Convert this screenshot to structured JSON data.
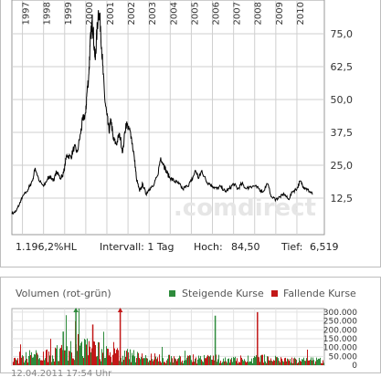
{
  "chart_data": [
    {
      "type": "line",
      "watermark": ".comdirect",
      "x_tick_labels": [
        "1997",
        "1998",
        "1999",
        "2000",
        "2001",
        "2002",
        "2003",
        "2004",
        "2005",
        "2006",
        "2007",
        "2008",
        "2009",
        "2010"
      ],
      "y_tick_labels": [
        "75,0",
        "62,5",
        "50,0",
        "37,5",
        "25,0",
        "12,5"
      ],
      "ylim": [
        0,
        84.5
      ],
      "y_axis_side": "right",
      "grid": true,
      "line_color": "#000000",
      "series": [
        {
          "x": [
            1996.5,
            1996.7,
            1996.9,
            1997.0,
            1997.2,
            1997.35,
            1997.5,
            1997.6,
            1997.8,
            1998.0,
            1998.2,
            1998.3,
            1998.5,
            1998.6,
            1998.8,
            1998.95,
            1999.1,
            1999.3,
            1999.45,
            1999.6,
            1999.75,
            1999.85,
            2000.0,
            2000.05,
            2000.15,
            2000.2,
            2000.3,
            2000.35,
            2000.45,
            2000.5,
            2000.6,
            2000.7,
            2000.8,
            2000.9,
            2001.0,
            2001.1,
            2001.2,
            2001.3,
            2001.45,
            2001.6,
            2001.75,
            2001.9,
            2002.05,
            2002.15,
            2002.3,
            2002.4,
            2002.55,
            2002.7,
            2002.85,
            2003.0,
            2003.2,
            2003.4,
            2003.55,
            2003.7,
            2003.85,
            2004.0,
            2004.2,
            2004.4,
            2004.6,
            2004.8,
            2005.0,
            2005.2,
            2005.35,
            2005.5,
            2005.7,
            2005.85,
            2006.0,
            2006.2,
            2006.4,
            2006.6,
            2006.8,
            2007.0,
            2007.2,
            2007.4,
            2007.6,
            2007.8,
            2008.0,
            2008.2,
            2008.4,
            2008.6,
            2008.8,
            2009.0,
            2009.2,
            2009.4,
            2009.6,
            2009.8,
            2010.0,
            2010.15,
            2010.3,
            2010.45,
            2010.6,
            2010.75
          ],
          "values": [
            6.5,
            7.5,
            11,
            13,
            15,
            17,
            20,
            24,
            19,
            17,
            20,
            21,
            19,
            23,
            20,
            22,
            29,
            28,
            32,
            30,
            37,
            42,
            45,
            52,
            60,
            70,
            80,
            76,
            65,
            72,
            84,
            78,
            63,
            50,
            44,
            38,
            42,
            35,
            33,
            37,
            30,
            41,
            39,
            36,
            28,
            20,
            15,
            18,
            14,
            16,
            17,
            21,
            28,
            25,
            22,
            20,
            19,
            18,
            16,
            17,
            19,
            23,
            20,
            23,
            19,
            18,
            17,
            16,
            17,
            15,
            16,
            18,
            16,
            18,
            16,
            17,
            17,
            16,
            15,
            18,
            13,
            12,
            13,
            14,
            12,
            15,
            16,
            19,
            17,
            16,
            15,
            14
          ]
        }
      ]
    },
    {
      "type": "bar",
      "title": "Volumen (rot-grün)",
      "legend": [
        {
          "label": "Steigende Kurse",
          "color": "#2e8b3c"
        },
        {
          "label": "Fallende Kurse",
          "color": "#c21818"
        }
      ],
      "y_tick_labels": [
        "300.000",
        "250.000",
        "200.000",
        "150.000",
        "100.000",
        "50.000",
        "0"
      ],
      "ylim": [
        0,
        320000
      ],
      "y_axis_side": "right",
      "grid": true,
      "x_range": [
        1996.5,
        2011.3
      ],
      "volume_profile": {
        "x": [
          1996.5,
          1997.5,
          1998.5,
          1999.5,
          2000.0,
          2000.5,
          2001.0,
          2001.5,
          2002.0,
          2003.0,
          2004.0,
          2005.0,
          2006.0,
          2007.0,
          2008.0,
          2009.0,
          2010.0,
          2011.0
        ],
        "values": [
          25000,
          55000,
          75000,
          110000,
          140000,
          100000,
          70000,
          65000,
          60000,
          45000,
          40000,
          35000,
          40000,
          35000,
          40000,
          35000,
          30000,
          28000
        ]
      },
      "spikes": [
        {
          "x": 1999.5,
          "value": 320000,
          "color": "#2e8b3c"
        },
        {
          "x": 2001.6,
          "value": 320000,
          "color": "#c21818"
        },
        {
          "x": 2006.1,
          "value": 280000,
          "color": "#2e8b3c"
        },
        {
          "x": 2008.1,
          "value": 300000,
          "color": "#c21818"
        },
        {
          "x": 2000.3,
          "value": 230000,
          "color": "#c21818"
        },
        {
          "x": 1998.9,
          "value": 190000,
          "color": "#2e8b3c"
        }
      ]
    }
  ],
  "stats": {
    "performance": "1.196,2%HL",
    "interval": "Intervall: 1 Tag",
    "high_label": "Hoch:",
    "high_value": "84,50",
    "low_label": "Tief:",
    "low_value": "6,519"
  },
  "timestamp": "12.04.2011 17:54 Uhr"
}
